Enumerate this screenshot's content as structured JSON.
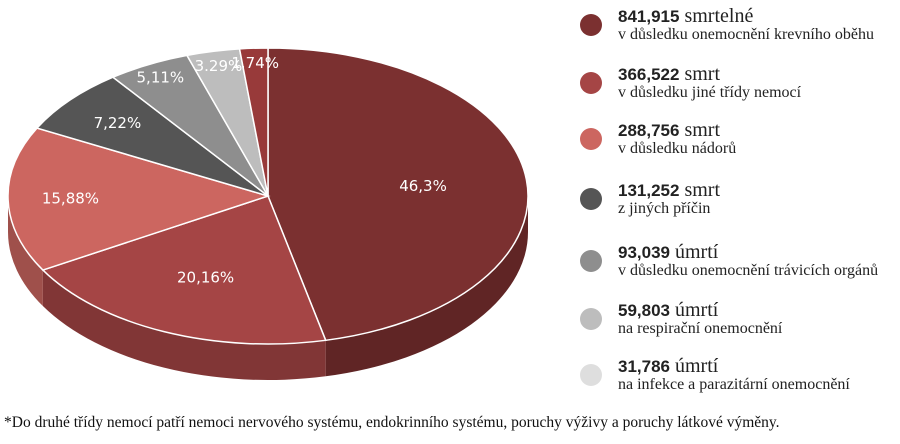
{
  "chart_data": {
    "type": "pie",
    "title": "",
    "slices": [
      {
        "value": 46.3,
        "label": "46,3%",
        "color": "#7b3030"
      },
      {
        "value": 20.16,
        "label": "20,16%",
        "color": "#a54545"
      },
      {
        "value": 15.88,
        "label": "15,88%",
        "color": "#cc6660"
      },
      {
        "value": 7.22,
        "label": "7,22%",
        "color": "#555555"
      },
      {
        "value": 5.11,
        "label": "5,11%",
        "color": "#8e8e8e"
      },
      {
        "value": 3.29,
        "label": "3.29%",
        "color": "#bdbdbd"
      },
      {
        "value": 1.74,
        "label": "1.74%",
        "color": "#983a3a"
      }
    ],
    "legend_placement": "right",
    "legend": [
      {
        "value": "841,915",
        "unit": "smrtelné",
        "desc": "v důsledku onemocnění krevního oběhu",
        "color": "#7b3030"
      },
      {
        "value": "366,522",
        "unit": "smrt",
        "desc": "v důsledku jiné třídy nemocí",
        "color": "#a54545"
      },
      {
        "value": "288,756",
        "unit": "smrt",
        "desc": "v důsledku nádorů",
        "color": "#cc6660"
      },
      {
        "value": "131,252",
        "unit": "smrt",
        "desc": "z jiných příčin",
        "color": "#555555"
      },
      {
        "value": "93,039",
        "unit": "úmrtí",
        "desc": "v důsledku onemocnění trávicích orgánů",
        "color": "#8e8e8e"
      },
      {
        "value": "59,803",
        "unit": "úmrtí",
        "desc": "na respirační onemocnění",
        "color": "#bdbdbd"
      },
      {
        "value": "31,786",
        "unit": "úmrtí",
        "desc": "na infekce a parazitární onemocnění",
        "color": "#dedede"
      }
    ]
  },
  "footnote": "*Do druhé třídy nemocí patří nemoci nervového systému, endokrinního systému, poruchy výživy a poruchy látkové výměny."
}
